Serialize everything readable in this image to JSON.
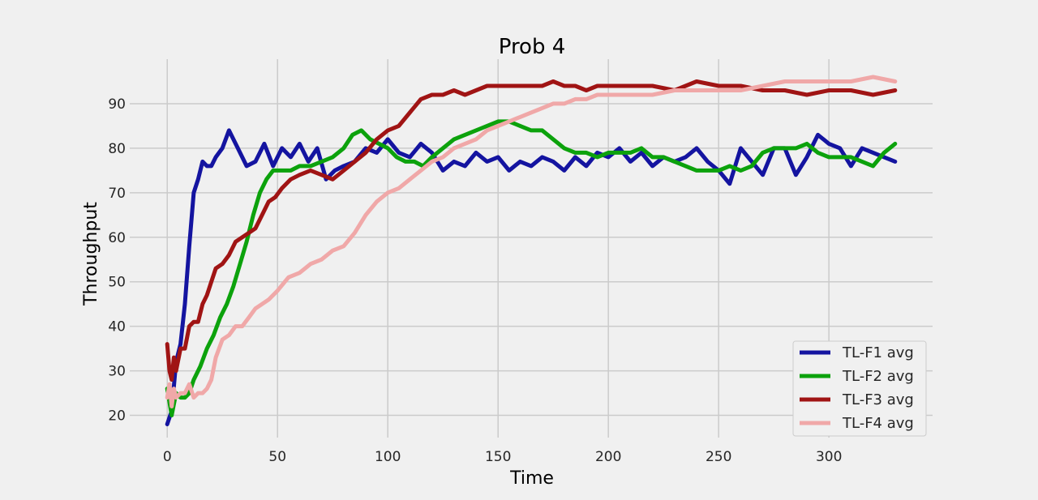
{
  "chart_data": {
    "type": "line",
    "title": "Prob 4",
    "xlabel": "Time",
    "ylabel": "Throughput",
    "xlim": [
      -17,
      347
    ],
    "ylim": [
      15,
      100
    ],
    "xticks": [
      0,
      50,
      100,
      150,
      200,
      250,
      300
    ],
    "yticks": [
      20,
      30,
      40,
      50,
      60,
      70,
      80,
      90
    ],
    "grid": true,
    "legend_position": "bottom-right",
    "style": {
      "background": "#f0f0f0",
      "grid_color": "#cbcbcb"
    },
    "series": [
      {
        "name": "TL-F1 avg",
        "color": "#1414a0",
        "x": [
          0,
          2,
          4,
          6,
          8,
          10,
          12,
          14,
          16,
          18,
          20,
          22,
          25,
          28,
          32,
          36,
          40,
          44,
          48,
          52,
          56,
          60,
          64,
          68,
          72,
          76,
          80,
          85,
          90,
          95,
          100,
          105,
          110,
          115,
          120,
          125,
          130,
          135,
          140,
          145,
          150,
          155,
          160,
          165,
          170,
          175,
          180,
          185,
          190,
          195,
          200,
          205,
          210,
          215,
          220,
          225,
          230,
          235,
          240,
          245,
          250,
          255,
          260,
          265,
          270,
          275,
          280,
          285,
          290,
          295,
          300,
          305,
          310,
          315,
          320,
          325,
          330
        ],
        "y": [
          18,
          21,
          32,
          36,
          45,
          58,
          70,
          73,
          77,
          76,
          76,
          78,
          80,
          84,
          80,
          76,
          77,
          81,
          76,
          80,
          78,
          81,
          77,
          80,
          73,
          75,
          76,
          77,
          80,
          79,
          82,
          79,
          78,
          81,
          79,
          75,
          77,
          76,
          79,
          77,
          78,
          75,
          77,
          76,
          78,
          77,
          75,
          78,
          76,
          79,
          78,
          80,
          77,
          79,
          76,
          78,
          77,
          78,
          80,
          77,
          75,
          72,
          80,
          77,
          74,
          80,
          80,
          74,
          78,
          83,
          81,
          80,
          76,
          80,
          79,
          78,
          77
        ]
      },
      {
        "name": "TL-F2 avg",
        "color": "#0ca20c",
        "x": [
          0,
          2,
          4,
          6,
          8,
          10,
          12,
          15,
          18,
          21,
          24,
          27,
          30,
          33,
          36,
          39,
          42,
          45,
          48,
          52,
          56,
          60,
          65,
          70,
          75,
          80,
          84,
          88,
          92,
          96,
          100,
          104,
          108,
          112,
          116,
          120,
          125,
          130,
          135,
          140,
          145,
          150,
          155,
          160,
          165,
          170,
          175,
          180,
          185,
          190,
          195,
          200,
          205,
          210,
          215,
          220,
          225,
          230,
          235,
          240,
          245,
          250,
          255,
          260,
          265,
          270,
          275,
          280,
          285,
          290,
          295,
          300,
          305,
          310,
          315,
          320,
          325,
          330
        ],
        "y": [
          26,
          20,
          25,
          24,
          24,
          25,
          28,
          31,
          35,
          38,
          42,
          45,
          49,
          54,
          59,
          65,
          70,
          73,
          75,
          75,
          75,
          76,
          76,
          77,
          78,
          80,
          83,
          84,
          82,
          81,
          80,
          78,
          77,
          77,
          76,
          78,
          80,
          82,
          83,
          84,
          85,
          86,
          86,
          85,
          84,
          84,
          82,
          80,
          79,
          79,
          78,
          79,
          79,
          79,
          80,
          78,
          78,
          77,
          76,
          75,
          75,
          75,
          76,
          75,
          76,
          79,
          80,
          80,
          80,
          81,
          79,
          78,
          78,
          78,
          77,
          76,
          79,
          81
        ]
      },
      {
        "name": "TL-F3 avg",
        "color": "#a01414",
        "x": [
          0,
          1,
          2,
          3,
          4,
          6,
          8,
          10,
          12,
          14,
          16,
          18,
          20,
          22,
          25,
          28,
          31,
          34,
          37,
          40,
          43,
          46,
          49,
          52,
          56,
          60,
          65,
          70,
          75,
          80,
          85,
          90,
          95,
          100,
          105,
          110,
          115,
          120,
          125,
          130,
          135,
          140,
          145,
          150,
          155,
          160,
          165,
          170,
          175,
          180,
          185,
          190,
          195,
          200,
          210,
          220,
          230,
          240,
          250,
          260,
          270,
          280,
          290,
          300,
          310,
          320,
          330
        ],
        "y": [
          36,
          30,
          28,
          33,
          30,
          35,
          35,
          40,
          41,
          41,
          45,
          47,
          50,
          53,
          54,
          56,
          59,
          60,
          61,
          62,
          65,
          68,
          69,
          71,
          73,
          74,
          75,
          74,
          73,
          75,
          77,
          79,
          82,
          84,
          85,
          88,
          91,
          92,
          92,
          93,
          92,
          93,
          94,
          94,
          94,
          94,
          94,
          94,
          95,
          94,
          94,
          93,
          94,
          94,
          94,
          94,
          93,
          95,
          94,
          94,
          93,
          93,
          92,
          93,
          93,
          92,
          93
        ]
      },
      {
        "name": "TL-F4 avg",
        "color": "#f0a8a8",
        "x": [
          0,
          1,
          2,
          3,
          4,
          6,
          8,
          10,
          12,
          14,
          16,
          18,
          20,
          22,
          25,
          28,
          31,
          34,
          37,
          40,
          43,
          46,
          50,
          55,
          60,
          65,
          70,
          75,
          80,
          85,
          90,
          95,
          100,
          105,
          110,
          115,
          120,
          125,
          130,
          135,
          140,
          145,
          150,
          155,
          160,
          165,
          170,
          175,
          180,
          185,
          190,
          195,
          200,
          210,
          220,
          230,
          240,
          250,
          260,
          270,
          280,
          290,
          300,
          310,
          320,
          330
        ],
        "y": [
          24,
          27,
          22,
          26,
          24,
          25,
          25,
          27,
          24,
          25,
          25,
          26,
          28,
          33,
          37,
          38,
          40,
          40,
          42,
          44,
          45,
          46,
          48,
          51,
          52,
          54,
          55,
          57,
          58,
          61,
          65,
          68,
          70,
          71,
          73,
          75,
          77,
          78,
          80,
          81,
          82,
          84,
          85,
          86,
          87,
          88,
          89,
          90,
          90,
          91,
          91,
          92,
          92,
          92,
          92,
          93,
          93,
          93,
          93,
          94,
          95,
          95,
          95,
          95,
          96,
          95
        ]
      }
    ]
  }
}
